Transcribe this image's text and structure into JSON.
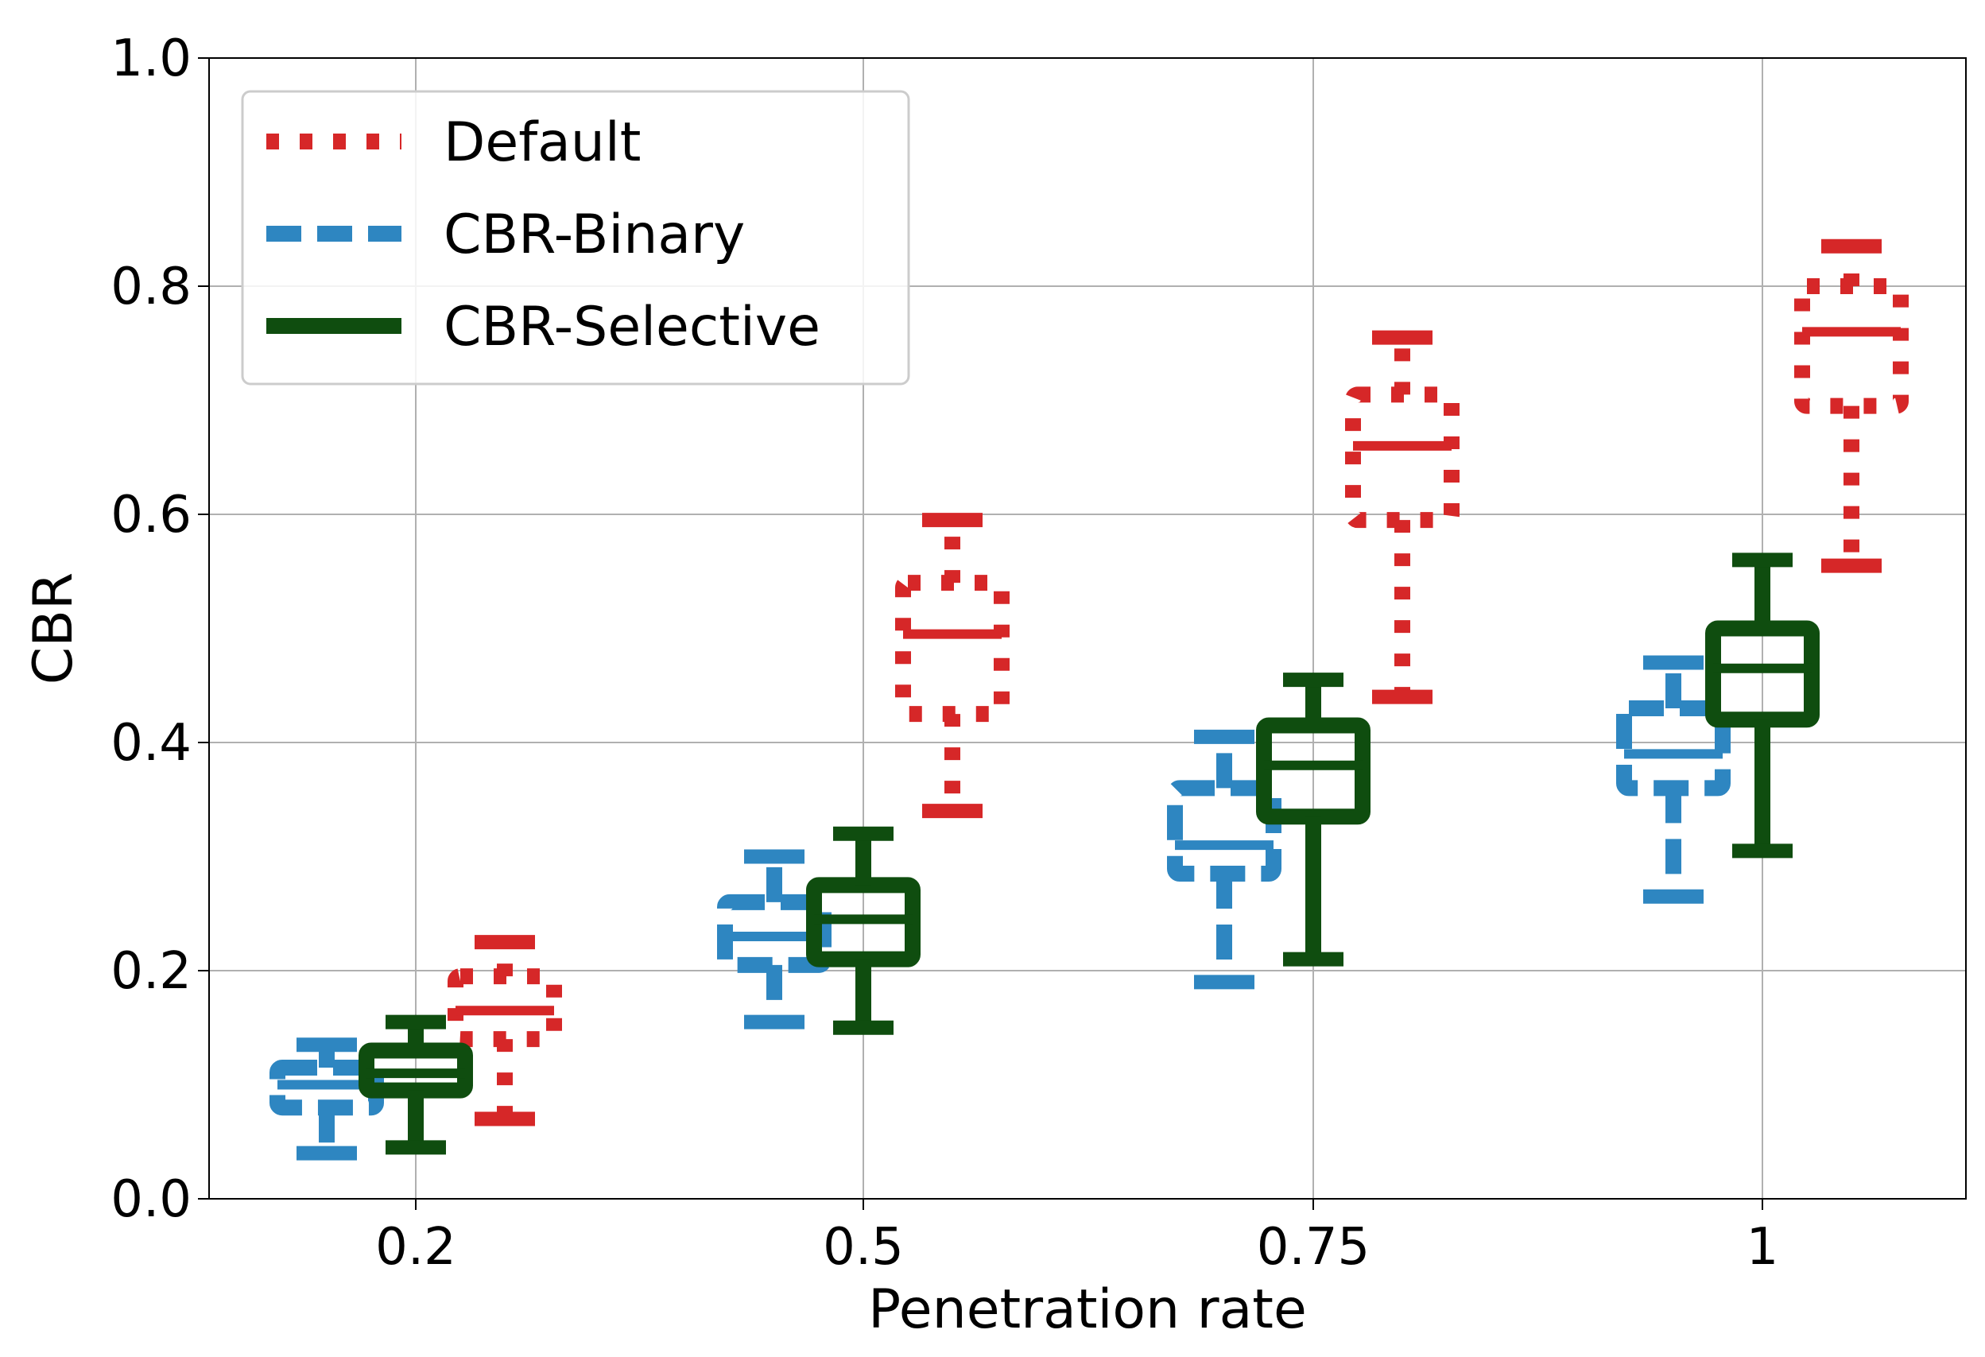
{
  "chart_data": {
    "type": "box",
    "title": "",
    "xlabel": "Penetration rate",
    "ylabel": "CBR",
    "ylim": [
      0.0,
      1.0
    ],
    "yticks": [
      "0.0",
      "0.2",
      "0.4",
      "0.6",
      "0.8",
      "1.0"
    ],
    "categories": [
      "0.2",
      "0.5",
      "0.75",
      "1"
    ],
    "grid": true,
    "legend_position": "top-left",
    "series": [
      {
        "name": "Default",
        "color": "#d62728",
        "linestyle": "dotted",
        "boxes": [
          {
            "whisker_low": 0.07,
            "q1": 0.14,
            "median": 0.165,
            "q3": 0.195,
            "whisker_high": 0.225
          },
          {
            "whisker_low": 0.34,
            "q1": 0.425,
            "median": 0.495,
            "q3": 0.54,
            "whisker_high": 0.595
          },
          {
            "whisker_low": 0.44,
            "q1": 0.595,
            "median": 0.66,
            "q3": 0.705,
            "whisker_high": 0.755
          },
          {
            "whisker_low": 0.555,
            "q1": 0.695,
            "median": 0.76,
            "q3": 0.8,
            "whisker_high": 0.835
          }
        ]
      },
      {
        "name": "CBR-Binary",
        "color": "#2e86c1",
        "linestyle": "dashed",
        "boxes": [
          {
            "whisker_low": 0.04,
            "q1": 0.08,
            "median": 0.1,
            "q3": 0.115,
            "whisker_high": 0.135
          },
          {
            "whisker_low": 0.155,
            "q1": 0.205,
            "median": 0.23,
            "q3": 0.26,
            "whisker_high": 0.3
          },
          {
            "whisker_low": 0.19,
            "q1": 0.285,
            "median": 0.31,
            "q3": 0.36,
            "whisker_high": 0.405
          },
          {
            "whisker_low": 0.265,
            "q1": 0.36,
            "median": 0.39,
            "q3": 0.43,
            "whisker_high": 0.47
          }
        ]
      },
      {
        "name": "CBR-Selective",
        "color": "#0f4d0f",
        "linestyle": "solid",
        "boxes": [
          {
            "whisker_low": 0.045,
            "q1": 0.095,
            "median": 0.11,
            "q3": 0.13,
            "whisker_high": 0.155
          },
          {
            "whisker_low": 0.15,
            "q1": 0.21,
            "median": 0.245,
            "q3": 0.275,
            "whisker_high": 0.32
          },
          {
            "whisker_low": 0.21,
            "q1": 0.335,
            "median": 0.38,
            "q3": 0.415,
            "whisker_high": 0.455
          },
          {
            "whisker_low": 0.305,
            "q1": 0.42,
            "median": 0.465,
            "q3": 0.5,
            "whisker_high": 0.56
          }
        ]
      }
    ]
  }
}
